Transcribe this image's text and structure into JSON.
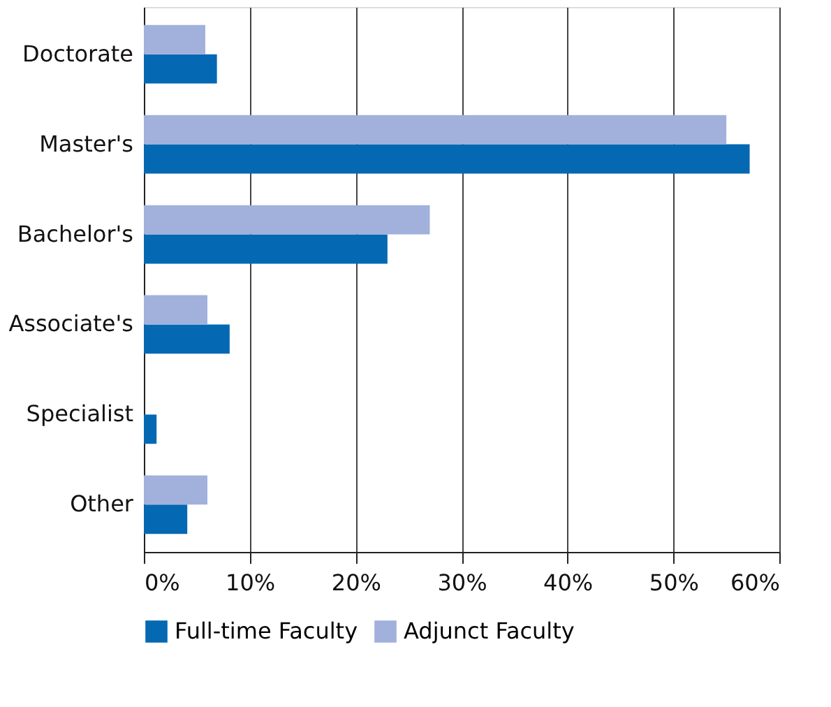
{
  "chart_data": {
    "type": "bar",
    "orientation": "horizontal",
    "categories": [
      "Doctorate",
      "Master's",
      "Bachelor's",
      "Associate's",
      "Specialist",
      "Other"
    ],
    "series": [
      {
        "name": "Full-time Faculty",
        "color": "#0568b3",
        "values": [
          6.9,
          57.2,
          23.0,
          8.1,
          1.2,
          4.1
        ]
      },
      {
        "name": "Adjunct Faculty",
        "color": "#a1b1dc",
        "values": [
          5.8,
          55.0,
          27.0,
          6.0,
          0,
          6.0
        ]
      }
    ],
    "xlim": [
      0,
      60
    ],
    "xticks": [
      {
        "value": 0,
        "label": "0%"
      },
      {
        "value": 10,
        "label": "10%"
      },
      {
        "value": 20,
        "label": "20%"
      },
      {
        "value": 30,
        "label": "30%"
      },
      {
        "value": 40,
        "label": "40%"
      },
      {
        "value": 50,
        "label": "50%"
      },
      {
        "value": 60,
        "label": "60%"
      }
    ],
    "grid": "x",
    "legend": "bottom"
  }
}
